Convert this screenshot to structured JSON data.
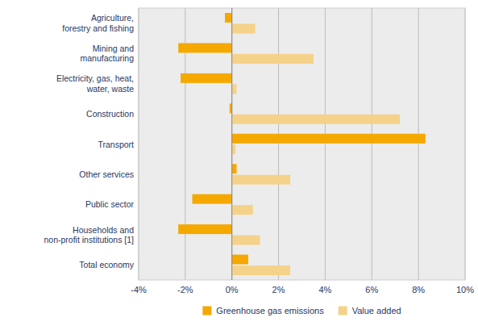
{
  "chart_data": {
    "type": "bar",
    "orientation": "horizontal",
    "categories": [
      "Agriculture,\nforestry and fishing",
      "Mining and\nmanufacturing",
      "Electricity, gas, heat,\nwater, waste",
      "Construction",
      "Transport",
      "Other services",
      "Public sector",
      "Households and\nnon-profit institutions [1]",
      "Total economy"
    ],
    "series": [
      {
        "name": "Greenhouse gas emissions",
        "color": "#F5A800",
        "values": [
          -0.3,
          -2.3,
          -2.2,
          -0.1,
          8.3,
          0.2,
          -1.7,
          -2.3,
          0.7
        ]
      },
      {
        "name": "Value added",
        "color": "#F5D28A",
        "values": [
          1.0,
          3.5,
          0.2,
          7.2,
          0.15,
          2.5,
          0.9,
          1.2,
          2.5
        ]
      }
    ],
    "xlim": [
      -4,
      10
    ],
    "xticks": [
      {
        "value": -4,
        "label": "-4%"
      },
      {
        "value": -2,
        "label": "-2%"
      },
      {
        "value": 0,
        "label": "0%"
      },
      {
        "value": 2,
        "label": "2%"
      },
      {
        "value": 4,
        "label": "4%"
      },
      {
        "value": 6,
        "label": "6%"
      },
      {
        "value": 8,
        "label": "8%"
      },
      {
        "value": 10,
        "label": "10%"
      }
    ],
    "grid": true,
    "legend": "bottom"
  }
}
